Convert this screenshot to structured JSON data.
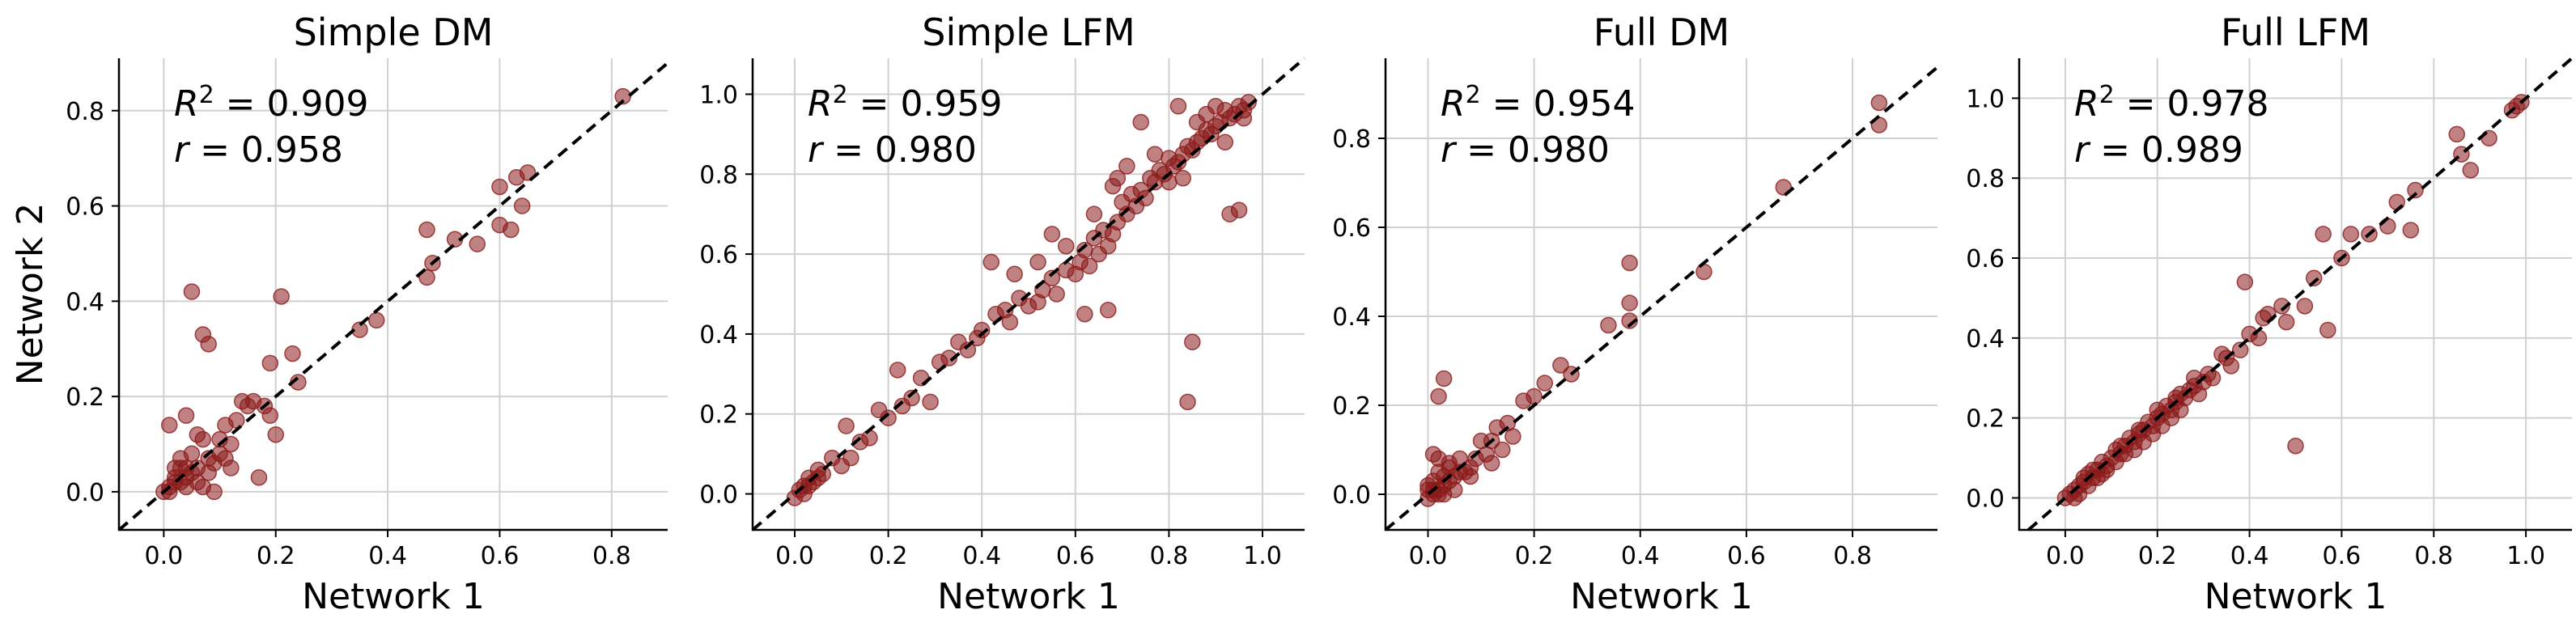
{
  "colors": {
    "point": "#8b1a1a",
    "diagonal": "#000000",
    "grid": "#d0d0d0"
  },
  "chart_data": [
    {
      "type": "scatter",
      "title": "Simple DM",
      "xlabel": "Network 1",
      "ylabel": "Network 2",
      "xlim": [
        -0.08,
        0.9
      ],
      "ylim": [
        -0.08,
        0.91
      ],
      "xticks": [
        "0.0",
        "0.2",
        "0.4",
        "0.6",
        "0.8"
      ],
      "yticks": [
        "0.0",
        "0.2",
        "0.4",
        "0.6",
        "0.8"
      ],
      "stats": {
        "r2": "0.909",
        "r": "0.958"
      },
      "grid": true,
      "diagonal": "y = x",
      "points": [
        [
          0.82,
          0.83
        ],
        [
          0.65,
          0.67
        ],
        [
          0.63,
          0.66
        ],
        [
          0.6,
          0.64
        ],
        [
          0.62,
          0.55
        ],
        [
          0.6,
          0.56
        ],
        [
          0.64,
          0.6
        ],
        [
          0.56,
          0.52
        ],
        [
          0.52,
          0.53
        ],
        [
          0.47,
          0.55
        ],
        [
          0.48,
          0.48
        ],
        [
          0.47,
          0.45
        ],
        [
          0.38,
          0.36
        ],
        [
          0.35,
          0.34
        ],
        [
          0.23,
          0.29
        ],
        [
          0.21,
          0.41
        ],
        [
          0.19,
          0.27
        ],
        [
          0.24,
          0.23
        ],
        [
          0.18,
          0.18
        ],
        [
          0.2,
          0.12
        ],
        [
          0.17,
          0.03
        ],
        [
          0.15,
          0.18
        ],
        [
          0.14,
          0.19
        ],
        [
          0.16,
          0.19
        ],
        [
          0.13,
          0.15
        ],
        [
          0.11,
          0.14
        ],
        [
          0.12,
          0.1
        ],
        [
          0.1,
          0.08
        ],
        [
          0.09,
          0.06
        ],
        [
          0.08,
          0.31
        ],
        [
          0.07,
          0.33
        ],
        [
          0.05,
          0.42
        ],
        [
          0.04,
          0.16
        ],
        [
          0.01,
          0.14
        ],
        [
          0.06,
          0.12
        ],
        [
          0.07,
          0.11
        ],
        [
          0.05,
          0.08
        ],
        [
          0.08,
          0.07
        ],
        [
          0.06,
          0.05
        ],
        [
          0.04,
          0.03
        ],
        [
          0.03,
          0.07
        ],
        [
          0.02,
          0.05
        ],
        [
          0.03,
          0.02
        ],
        [
          0.01,
          0.01
        ],
        [
          0.02,
          0.02
        ],
        [
          0.0,
          0.0
        ],
        [
          0.01,
          0.0
        ],
        [
          0.04,
          0.01
        ],
        [
          0.07,
          0.01
        ],
        [
          0.09,
          0.0
        ],
        [
          0.05,
          0.04
        ],
        [
          0.02,
          0.03
        ],
        [
          0.03,
          0.05
        ],
        [
          0.06,
          0.02
        ],
        [
          0.11,
          0.07
        ],
        [
          0.12,
          0.05
        ],
        [
          0.1,
          0.11
        ],
        [
          0.08,
          0.04
        ],
        [
          0.04,
          0.05
        ],
        [
          0.19,
          0.16
        ]
      ]
    },
    {
      "type": "scatter",
      "title": "Simple LFM",
      "xlabel": "Network 1",
      "ylabel": "",
      "xlim": [
        -0.09,
        1.09
      ],
      "ylim": [
        -0.09,
        1.09
      ],
      "xticks": [
        "0.0",
        "0.2",
        "0.4",
        "0.6",
        "0.8",
        "1.0"
      ],
      "yticks": [
        "0.0",
        "0.2",
        "0.4",
        "0.6",
        "0.8",
        "1.0"
      ],
      "stats": {
        "r2": "0.959",
        "r": "0.980"
      },
      "grid": true,
      "diagonal": "y = x",
      "points": [
        [
          0.97,
          0.98
        ],
        [
          0.96,
          0.96
        ],
        [
          0.95,
          0.97
        ],
        [
          0.94,
          0.95
        ],
        [
          0.93,
          0.94
        ],
        [
          0.92,
          0.96
        ],
        [
          0.91,
          0.93
        ],
        [
          0.9,
          0.92
        ],
        [
          0.89,
          0.9
        ],
        [
          0.88,
          0.91
        ],
        [
          0.87,
          0.89
        ],
        [
          0.86,
          0.88
        ],
        [
          0.85,
          0.86
        ],
        [
          0.84,
          0.87
        ],
        [
          0.83,
          0.85
        ],
        [
          0.82,
          0.83
        ],
        [
          0.81,
          0.82
        ],
        [
          0.8,
          0.84
        ],
        [
          0.79,
          0.8
        ],
        [
          0.78,
          0.81
        ],
        [
          0.77,
          0.78
        ],
        [
          0.76,
          0.79
        ],
        [
          0.75,
          0.74
        ],
        [
          0.74,
          0.76
        ],
        [
          0.73,
          0.72
        ],
        [
          0.72,
          0.75
        ],
        [
          0.71,
          0.7
        ],
        [
          0.7,
          0.73
        ],
        [
          0.69,
          0.68
        ],
        [
          0.68,
          0.65
        ],
        [
          0.67,
          0.62
        ],
        [
          0.66,
          0.66
        ],
        [
          0.65,
          0.6
        ],
        [
          0.64,
          0.64
        ],
        [
          0.63,
          0.57
        ],
        [
          0.62,
          0.61
        ],
        [
          0.61,
          0.58
        ],
        [
          0.6,
          0.55
        ],
        [
          0.58,
          0.56
        ],
        [
          0.56,
          0.5
        ],
        [
          0.55,
          0.54
        ],
        [
          0.53,
          0.51
        ],
        [
          0.52,
          0.48
        ],
        [
          0.5,
          0.47
        ],
        [
          0.48,
          0.49
        ],
        [
          0.46,
          0.43
        ],
        [
          0.45,
          0.46
        ],
        [
          0.43,
          0.45
        ],
        [
          0.42,
          0.58
        ],
        [
          0.4,
          0.41
        ],
        [
          0.39,
          0.39
        ],
        [
          0.37,
          0.36
        ],
        [
          0.35,
          0.38
        ],
        [
          0.33,
          0.34
        ],
        [
          0.31,
          0.33
        ],
        [
          0.29,
          0.23
        ],
        [
          0.27,
          0.29
        ],
        [
          0.25,
          0.24
        ],
        [
          0.23,
          0.22
        ],
        [
          0.22,
          0.31
        ],
        [
          0.2,
          0.19
        ],
        [
          0.18,
          0.21
        ],
        [
          0.16,
          0.14
        ],
        [
          0.14,
          0.13
        ],
        [
          0.12,
          0.09
        ],
        [
          0.1,
          0.07
        ],
        [
          0.11,
          0.17
        ],
        [
          0.08,
          0.09
        ],
        [
          0.06,
          0.05
        ],
        [
          0.05,
          0.06
        ],
        [
          0.04,
          0.03
        ],
        [
          0.03,
          0.04
        ],
        [
          0.02,
          0.02
        ],
        [
          0.01,
          0.01
        ],
        [
          0.02,
          0.0
        ],
        [
          0.03,
          0.02
        ],
        [
          0.0,
          -0.01
        ],
        [
          0.05,
          0.04
        ],
        [
          0.85,
          0.38
        ],
        [
          0.84,
          0.23
        ],
        [
          0.95,
          0.71
        ],
        [
          0.93,
          0.7
        ],
        [
          0.74,
          0.93
        ],
        [
          0.82,
          0.97
        ],
        [
          0.88,
          0.95
        ],
        [
          0.77,
          0.85
        ],
        [
          0.71,
          0.82
        ],
        [
          0.68,
          0.77
        ],
        [
          0.62,
          0.45
        ],
        [
          0.67,
          0.46
        ],
        [
          0.58,
          0.62
        ],
        [
          0.55,
          0.65
        ],
        [
          0.47,
          0.55
        ],
        [
          0.52,
          0.58
        ],
        [
          0.64,
          0.7
        ],
        [
          0.69,
          0.79
        ],
        [
          0.92,
          0.88
        ],
        [
          0.96,
          0.94
        ],
        [
          0.9,
          0.97
        ],
        [
          0.86,
          0.93
        ],
        [
          0.8,
          0.78
        ],
        [
          0.83,
          0.79
        ]
      ]
    },
    {
      "type": "scatter",
      "title": "Full DM",
      "xlabel": "Network 1",
      "ylabel": "",
      "xlim": [
        -0.08,
        0.96
      ],
      "ylim": [
        -0.08,
        0.98
      ],
      "xticks": [
        "0.0",
        "0.2",
        "0.4",
        "0.6",
        "0.8"
      ],
      "yticks": [
        "0.0",
        "0.2",
        "0.4",
        "0.6",
        "0.8"
      ],
      "stats": {
        "r2": "0.954",
        "r": "0.980"
      },
      "grid": true,
      "diagonal": "y = x",
      "points": [
        [
          0.85,
          0.88
        ],
        [
          0.85,
          0.83
        ],
        [
          0.67,
          0.69
        ],
        [
          0.52,
          0.5
        ],
        [
          0.38,
          0.52
        ],
        [
          0.38,
          0.43
        ],
        [
          0.38,
          0.39
        ],
        [
          0.34,
          0.38
        ],
        [
          0.27,
          0.27
        ],
        [
          0.25,
          0.29
        ],
        [
          0.22,
          0.25
        ],
        [
          0.2,
          0.22
        ],
        [
          0.18,
          0.21
        ],
        [
          0.15,
          0.16
        ],
        [
          0.13,
          0.15
        ],
        [
          0.12,
          0.12
        ],
        [
          0.14,
          0.1
        ],
        [
          0.11,
          0.09
        ],
        [
          0.09,
          0.08
        ],
        [
          0.08,
          0.06
        ],
        [
          0.06,
          0.05
        ],
        [
          0.05,
          0.04
        ],
        [
          0.04,
          0.03
        ],
        [
          0.03,
          0.02
        ],
        [
          0.02,
          0.01
        ],
        [
          0.01,
          0.0
        ],
        [
          0.0,
          -0.01
        ],
        [
          0.03,
          0.26
        ],
        [
          0.02,
          0.22
        ],
        [
          0.01,
          0.09
        ],
        [
          0.02,
          0.08
        ],
        [
          0.04,
          0.07
        ],
        [
          0.06,
          0.08
        ],
        [
          0.05,
          0.01
        ],
        [
          0.03,
          0.04
        ],
        [
          0.01,
          0.03
        ],
        [
          0.0,
          0.02
        ],
        [
          0.02,
          0.0
        ],
        [
          0.07,
          0.05
        ],
        [
          0.1,
          0.12
        ],
        [
          0.16,
          0.13
        ],
        [
          0.12,
          0.07
        ],
        [
          0.08,
          0.04
        ],
        [
          0.04,
          0.06
        ],
        [
          0.02,
          0.05
        ],
        [
          0.01,
          0.01
        ],
        [
          0.0,
          0.01
        ],
        [
          0.03,
          0.0
        ]
      ]
    },
    {
      "type": "scatter",
      "title": "Full LFM",
      "xlabel": "Network 1",
      "ylabel": "",
      "xlim": [
        -0.1,
        1.1
      ],
      "ylim": [
        -0.08,
        1.1
      ],
      "xticks": [
        "0.0",
        "0.2",
        "0.4",
        "0.6",
        "0.8",
        "1.0"
      ],
      "yticks": [
        "0.0",
        "0.2",
        "0.4",
        "0.6",
        "0.8",
        "1.0"
      ],
      "stats": {
        "r2": "0.978",
        "r": "0.989"
      },
      "grid": true,
      "diagonal": "y = x",
      "points": [
        [
          0.99,
          0.99
        ],
        [
          0.98,
          0.98
        ],
        [
          0.97,
          0.97
        ],
        [
          0.92,
          0.9
        ],
        [
          0.88,
          0.82
        ],
        [
          0.85,
          0.91
        ],
        [
          0.86,
          0.86
        ],
        [
          0.76,
          0.77
        ],
        [
          0.75,
          0.67
        ],
        [
          0.72,
          0.74
        ],
        [
          0.7,
          0.68
        ],
        [
          0.66,
          0.66
        ],
        [
          0.62,
          0.66
        ],
        [
          0.6,
          0.6
        ],
        [
          0.56,
          0.66
        ],
        [
          0.57,
          0.42
        ],
        [
          0.54,
          0.55
        ],
        [
          0.52,
          0.48
        ],
        [
          0.5,
          0.13
        ],
        [
          0.48,
          0.44
        ],
        [
          0.47,
          0.48
        ],
        [
          0.44,
          0.46
        ],
        [
          0.43,
          0.45
        ],
        [
          0.42,
          0.4
        ],
        [
          0.4,
          0.41
        ],
        [
          0.39,
          0.54
        ],
        [
          0.38,
          0.37
        ],
        [
          0.36,
          0.33
        ],
        [
          0.35,
          0.35
        ],
        [
          0.34,
          0.36
        ],
        [
          0.32,
          0.3
        ],
        [
          0.31,
          0.31
        ],
        [
          0.3,
          0.29
        ],
        [
          0.29,
          0.26
        ],
        [
          0.28,
          0.28
        ],
        [
          0.27,
          0.27
        ],
        [
          0.26,
          0.25
        ],
        [
          0.25,
          0.26
        ],
        [
          0.24,
          0.24
        ],
        [
          0.23,
          0.22
        ],
        [
          0.22,
          0.23
        ],
        [
          0.21,
          0.21
        ],
        [
          0.2,
          0.2
        ],
        [
          0.19,
          0.18
        ],
        [
          0.18,
          0.19
        ],
        [
          0.17,
          0.17
        ],
        [
          0.16,
          0.16
        ],
        [
          0.15,
          0.14
        ],
        [
          0.14,
          0.15
        ],
        [
          0.13,
          0.13
        ],
        [
          0.12,
          0.11
        ],
        [
          0.11,
          0.12
        ],
        [
          0.1,
          0.1
        ],
        [
          0.09,
          0.08
        ],
        [
          0.08,
          0.09
        ],
        [
          0.07,
          0.07
        ],
        [
          0.06,
          0.05
        ],
        [
          0.05,
          0.06
        ],
        [
          0.04,
          0.04
        ],
        [
          0.03,
          0.03
        ],
        [
          0.02,
          0.02
        ],
        [
          0.01,
          0.01
        ],
        [
          0.0,
          0.0
        ],
        [
          0.02,
          0.0
        ],
        [
          0.03,
          0.01
        ],
        [
          0.05,
          0.03
        ],
        [
          0.07,
          0.05
        ],
        [
          0.09,
          0.07
        ],
        [
          0.11,
          0.09
        ],
        [
          0.13,
          0.11
        ],
        [
          0.15,
          0.12
        ],
        [
          0.17,
          0.14
        ],
        [
          0.19,
          0.16
        ],
        [
          0.21,
          0.18
        ],
        [
          0.23,
          0.2
        ],
        [
          0.25,
          0.22
        ],
        [
          0.06,
          0.07
        ],
        [
          0.04,
          0.05
        ],
        [
          0.08,
          0.06
        ],
        [
          0.12,
          0.13
        ],
        [
          0.16,
          0.17
        ],
        [
          0.2,
          0.22
        ],
        [
          0.24,
          0.25
        ],
        [
          0.28,
          0.3
        ]
      ]
    }
  ]
}
